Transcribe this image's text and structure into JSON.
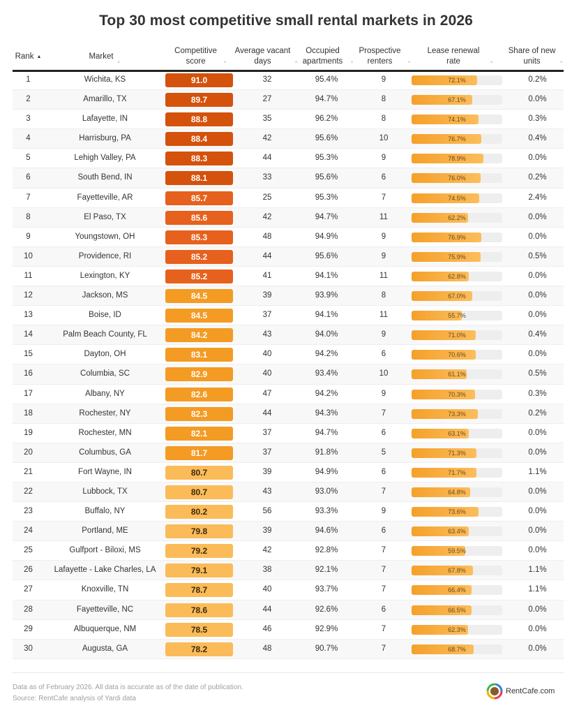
{
  "title": "Top 30 most competitive small rental markets in 2026",
  "colors": {
    "score_high": "#d4520c",
    "score_mid_high": "#e6611d",
    "score_mid": "#f49b24",
    "score_low": "#fbbb58",
    "bar_fill": "#f5a02a",
    "bar_track": "#eeeeee"
  },
  "headers": {
    "rank": "Rank",
    "market": "Market",
    "score": "Competitive score",
    "vacant": "Average vacant days",
    "occupied": "Occupied apartments",
    "renters": "Prospective renters",
    "renewal": "Lease renewal rate",
    "share": "Share of new units"
  },
  "sort": {
    "column": "rank",
    "direction": "ascending",
    "icon": "sort-ascending-icon"
  },
  "chart_data": {
    "type": "table",
    "title": "Top 30 most competitive small rental markets in 2026",
    "columns": [
      "Rank",
      "Market",
      "Competitive score",
      "Average vacant days",
      "Occupied apartments",
      "Prospective renters",
      "Lease renewal rate",
      "Share of new units"
    ],
    "renewal_bar_range": [
      0,
      100
    ],
    "rows": [
      {
        "rank": "1",
        "market": "Wichita, KS",
        "score": "91.0",
        "vacant": "32",
        "occupied": "95.4%",
        "renters": "9",
        "renewal": "72.1%",
        "share": "0.2%"
      },
      {
        "rank": "2",
        "market": "Amarillo, TX",
        "score": "89.7",
        "vacant": "27",
        "occupied": "94.7%",
        "renters": "8",
        "renewal": "67.1%",
        "share": "0.0%"
      },
      {
        "rank": "3",
        "market": "Lafayette, IN",
        "score": "88.8",
        "vacant": "35",
        "occupied": "96.2%",
        "renters": "8",
        "renewal": "74.1%",
        "share": "0.3%"
      },
      {
        "rank": "4",
        "market": "Harrisburg, PA",
        "score": "88.4",
        "vacant": "42",
        "occupied": "95.6%",
        "renters": "10",
        "renewal": "76.7%",
        "share": "0.4%"
      },
      {
        "rank": "5",
        "market": "Lehigh Valley, PA",
        "score": "88.3",
        "vacant": "44",
        "occupied": "95.3%",
        "renters": "9",
        "renewal": "78.9%",
        "share": "0.0%"
      },
      {
        "rank": "6",
        "market": "South Bend, IN",
        "score": "88.1",
        "vacant": "33",
        "occupied": "95.6%",
        "renters": "6",
        "renewal": "76.0%",
        "share": "0.2%"
      },
      {
        "rank": "7",
        "market": "Fayetteville, AR",
        "score": "85.7",
        "vacant": "25",
        "occupied": "95.3%",
        "renters": "7",
        "renewal": "74.5%",
        "share": "2.4%"
      },
      {
        "rank": "8",
        "market": "El Paso, TX",
        "score": "85.6",
        "vacant": "42",
        "occupied": "94.7%",
        "renters": "11",
        "renewal": "62.2%",
        "share": "0.0%"
      },
      {
        "rank": "9",
        "market": "Youngstown, OH",
        "score": "85.3",
        "vacant": "48",
        "occupied": "94.9%",
        "renters": "9",
        "renewal": "76.9%",
        "share": "0.0%"
      },
      {
        "rank": "10",
        "market": "Providence, RI",
        "score": "85.2",
        "vacant": "44",
        "occupied": "95.6%",
        "renters": "9",
        "renewal": "75.9%",
        "share": "0.5%"
      },
      {
        "rank": "11",
        "market": "Lexington, KY",
        "score": "85.2",
        "vacant": "41",
        "occupied": "94.1%",
        "renters": "11",
        "renewal": "62.8%",
        "share": "0.0%"
      },
      {
        "rank": "12",
        "market": "Jackson, MS",
        "score": "84.5",
        "vacant": "39",
        "occupied": "93.9%",
        "renters": "8",
        "renewal": "67.0%",
        "share": "0.0%"
      },
      {
        "rank": "13",
        "market": "Boise, ID",
        "score": "84.5",
        "vacant": "37",
        "occupied": "94.1%",
        "renters": "11",
        "renewal": "55.7%",
        "share": "0.0%"
      },
      {
        "rank": "14",
        "market": "Palm Beach County, FL",
        "score": "84.2",
        "vacant": "43",
        "occupied": "94.0%",
        "renters": "9",
        "renewal": "71.0%",
        "share": "0.4%"
      },
      {
        "rank": "15",
        "market": "Dayton, OH",
        "score": "83.1",
        "vacant": "40",
        "occupied": "94.2%",
        "renters": "6",
        "renewal": "70.6%",
        "share": "0.0%"
      },
      {
        "rank": "16",
        "market": "Columbia, SC",
        "score": "82.9",
        "vacant": "40",
        "occupied": "93.4%",
        "renters": "10",
        "renewal": "61.1%",
        "share": "0.5%"
      },
      {
        "rank": "17",
        "market": "Albany, NY",
        "score": "82.6",
        "vacant": "47",
        "occupied": "94.2%",
        "renters": "9",
        "renewal": "70.3%",
        "share": "0.3%"
      },
      {
        "rank": "18",
        "market": "Rochester, NY",
        "score": "82.3",
        "vacant": "44",
        "occupied": "94.3%",
        "renters": "7",
        "renewal": "73.3%",
        "share": "0.2%"
      },
      {
        "rank": "19",
        "market": "Rochester, MN",
        "score": "82.1",
        "vacant": "37",
        "occupied": "94.7%",
        "renters": "6",
        "renewal": "63.1%",
        "share": "0.0%"
      },
      {
        "rank": "20",
        "market": "Columbus, GA",
        "score": "81.7",
        "vacant": "37",
        "occupied": "91.8%",
        "renters": "5",
        "renewal": "71.3%",
        "share": "0.0%"
      },
      {
        "rank": "21",
        "market": "Fort Wayne, IN",
        "score": "80.7",
        "vacant": "39",
        "occupied": "94.9%",
        "renters": "6",
        "renewal": "71.7%",
        "share": "1.1%"
      },
      {
        "rank": "22",
        "market": "Lubbock, TX",
        "score": "80.7",
        "vacant": "43",
        "occupied": "93.0%",
        "renters": "7",
        "renewal": "64.8%",
        "share": "0.0%"
      },
      {
        "rank": "23",
        "market": "Buffalo, NY",
        "score": "80.2",
        "vacant": "56",
        "occupied": "93.3%",
        "renters": "9",
        "renewal": "73.6%",
        "share": "0.0%"
      },
      {
        "rank": "24",
        "market": "Portland, ME",
        "score": "79.8",
        "vacant": "39",
        "occupied": "94.6%",
        "renters": "6",
        "renewal": "63.4%",
        "share": "0.0%"
      },
      {
        "rank": "25",
        "market": "Gulfport - Biloxi, MS",
        "score": "79.2",
        "vacant": "42",
        "occupied": "92.8%",
        "renters": "7",
        "renewal": "59.5%",
        "share": "0.0%"
      },
      {
        "rank": "26",
        "market": "Lafayette - Lake Charles, LA",
        "score": "79.1",
        "vacant": "38",
        "occupied": "92.1%",
        "renters": "7",
        "renewal": "67.8%",
        "share": "1.1%"
      },
      {
        "rank": "27",
        "market": "Knoxville, TN",
        "score": "78.7",
        "vacant": "40",
        "occupied": "93.7%",
        "renters": "7",
        "renewal": "66.4%",
        "share": "1.1%"
      },
      {
        "rank": "28",
        "market": "Fayetteville, NC",
        "score": "78.6",
        "vacant": "44",
        "occupied": "92.6%",
        "renters": "6",
        "renewal": "66.5%",
        "share": "0.0%"
      },
      {
        "rank": "29",
        "market": "Albuquerque, NM",
        "score": "78.5",
        "vacant": "46",
        "occupied": "92.9%",
        "renters": "7",
        "renewal": "62.3%",
        "share": "0.0%"
      },
      {
        "rank": "30",
        "market": "Augusta, GA",
        "score": "78.2",
        "vacant": "48",
        "occupied": "90.7%",
        "renters": "7",
        "renewal": "68.7%",
        "share": "0.0%"
      }
    ]
  },
  "footer": {
    "note": "Data as of February 2026. All data is accurate as of the date of publication.",
    "source": "Source: RentCafe analysis of Yardi data",
    "logo_text": "RentCafe.com"
  }
}
